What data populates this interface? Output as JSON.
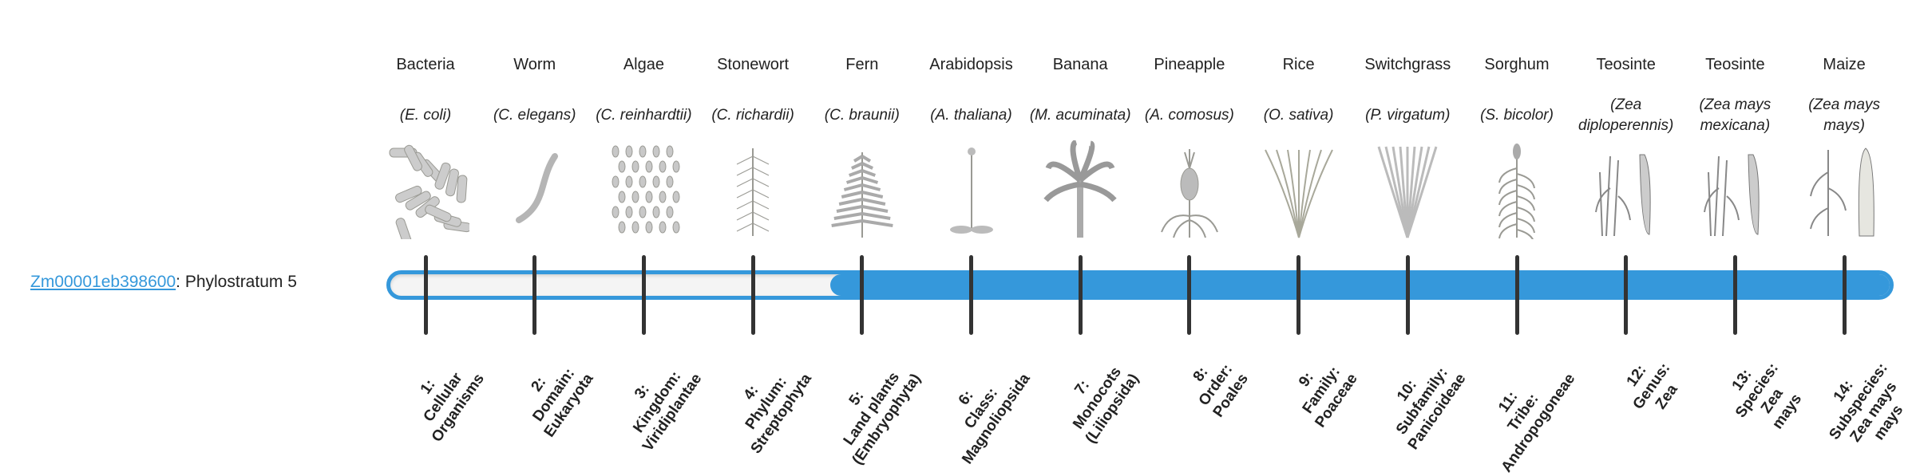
{
  "gene": {
    "id": "Zm00001eb398600",
    "suffix": ": Phylostratum 5",
    "phylostratum": 5
  },
  "colors": {
    "accent": "#3598db",
    "tick": "#333333",
    "track": "#f4f4f4"
  },
  "organisms": [
    {
      "name": "Bacteria",
      "species": "(E. coli)",
      "icon": "bacteria-icon"
    },
    {
      "name": "Worm",
      "species": "(C. elegans)",
      "icon": "worm-icon"
    },
    {
      "name": "Algae",
      "species": "(C. reinhardtii)",
      "icon": "algae-icon"
    },
    {
      "name": "Stonewort",
      "species": "(C. richardii)",
      "icon": "stonewort-icon"
    },
    {
      "name": "Fern",
      "species": "(C. braunii)",
      "icon": "fern-icon"
    },
    {
      "name": "Arabidopsis",
      "species": "(A. thaliana)",
      "icon": "arabidopsis-icon"
    },
    {
      "name": "Banana",
      "species": "(M. acuminata)",
      "icon": "banana-icon"
    },
    {
      "name": "Pineapple",
      "species": "(A. comosus)",
      "icon": "pineapple-icon"
    },
    {
      "name": "Rice",
      "species": "(O. sativa)",
      "icon": "rice-icon"
    },
    {
      "name": "Switchgrass",
      "species": "(P. virgatum)",
      "icon": "switchgrass-icon"
    },
    {
      "name": "Sorghum",
      "species": "(S. bicolor)",
      "icon": "sorghum-icon"
    },
    {
      "name": "Teosinte",
      "species": "(Zea diploperennis)",
      "icon": "teosinte-icon"
    },
    {
      "name": "Teosinte",
      "species": "(Zea mays mexicana)",
      "icon": "teosinte-icon"
    },
    {
      "name": "Maize",
      "species": "(Zea mays mays)",
      "icon": "maize-icon"
    }
  ],
  "strata": [
    "1:\nCellular\nOrganisms",
    "2:\nDomain:\nEukaryota",
    "3:\nKingdom:\nViridiplantae",
    "4:\nPhylum:\nStreptophyta",
    "5:\nLand plants\n(Embryophyta)",
    "6:\nClass:\nMagnoliopsida",
    "7:\nMonocots\n(Liliopsida)",
    "8:\nOrder:\nPoales",
    "9:\nFamily:\nPoaceae",
    "10:\nSubfamily:\nPanicoideae",
    "11:\nTribe:\nAndropogoneae",
    "12:\nGenus:\nZea",
    "13:\nSpecies:\nZea\nmays",
    "14:\nSubspecies:\nZea mays\nmays"
  ]
}
